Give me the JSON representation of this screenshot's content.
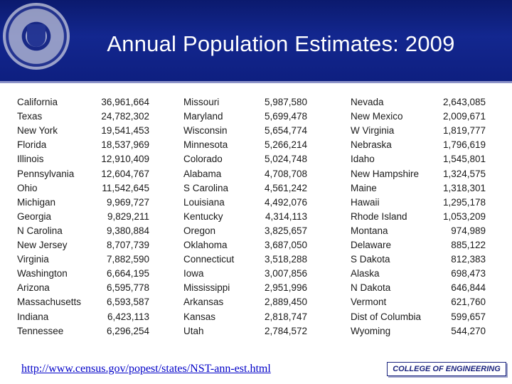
{
  "title": "Annual Population Estimates: 2009",
  "columns": [
    {
      "states": [
        "California",
        "Texas",
        "New York",
        "Florida",
        "Illinois",
        "Pennsylvania",
        "Ohio",
        "Michigan",
        "Georgia",
        "N Carolina",
        "New Jersey",
        "Virginia",
        "Washington",
        "Arizona",
        "Massachusetts",
        "Indiana",
        "Tennessee"
      ],
      "values": [
        "36,961,664",
        "24,782,302",
        "19,541,453",
        "18,537,969",
        "12,910,409",
        "12,604,767",
        "11,542,645",
        "9,969,727",
        "9,829,211",
        "9,380,884",
        "8,707,739",
        "7,882,590",
        "6,664,195",
        "6,595,778",
        "6,593,587",
        "6,423,113",
        "6,296,254"
      ]
    },
    {
      "states": [
        "Missouri",
        "Maryland",
        "Wisconsin",
        "Minnesota",
        "Colorado",
        "Alabama",
        "S Carolina",
        "Louisiana",
        "Kentucky",
        "Oregon",
        "Oklahoma",
        "Connecticut",
        "Iowa",
        "Mississippi",
        "Arkansas",
        "Kansas",
        "Utah"
      ],
      "values": [
        "5,987,580",
        "5,699,478",
        "5,654,774",
        "5,266,214",
        "5,024,748",
        "4,708,708",
        "4,561,242",
        "4,492,076",
        "4,314,113",
        "3,825,657",
        "3,687,050",
        "3,518,288",
        "3,007,856",
        "2,951,996",
        "2,889,450",
        "2,818,747",
        "2,784,572"
      ]
    },
    {
      "states": [
        "Nevada",
        "New Mexico",
        "W Virginia",
        "Nebraska",
        "Idaho",
        "New Hampshire",
        "Maine",
        "Hawaii",
        "Rhode Island",
        "Montana",
        "Delaware",
        "S Dakota",
        "Alaska",
        "N Dakota",
        "Vermont",
        "Dist of Columbia",
        "Wyoming"
      ],
      "values": [
        "2,643,085",
        "2,009,671",
        "1,819,777",
        "1,796,619",
        "1,545,801",
        "1,324,575",
        "1,318,301",
        "1,295,178",
        "1,053,209",
        "974,989",
        "885,122",
        "812,383",
        "698,473",
        "646,844",
        "621,760",
        "599,657",
        "544,270"
      ]
    }
  ],
  "source_url": "http://www.census.gov/popest/states/NST-ann-est.html",
  "logo_text": "COLLEGE OF ENGINEERING",
  "colors": {
    "header": "#13278f",
    "text": "#1a1a1a",
    "link": "#0000c8"
  }
}
